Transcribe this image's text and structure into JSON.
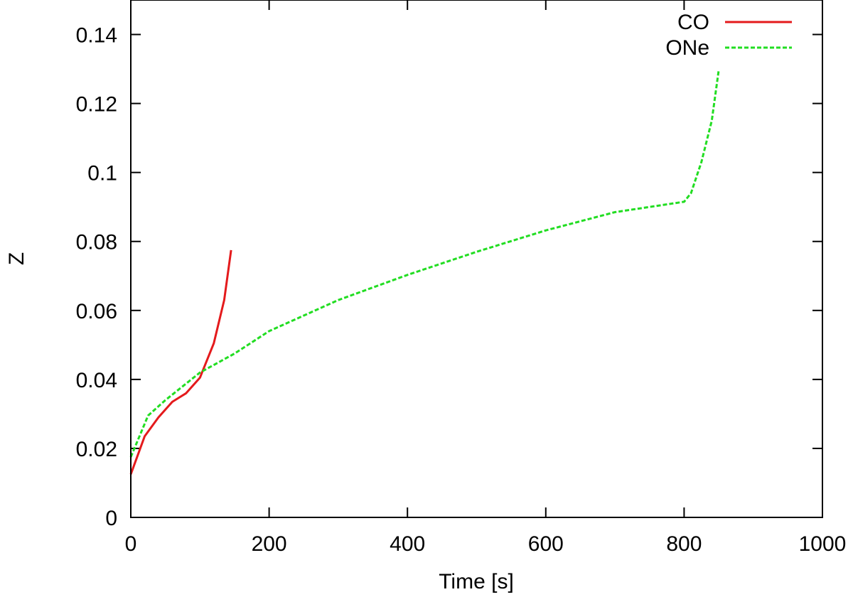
{
  "chart_data": {
    "type": "line",
    "title": "",
    "xlabel": "Time [s]",
    "ylabel": "Z",
    "xlim": [
      0,
      1000
    ],
    "ylim": [
      0,
      0.15
    ],
    "xticks": [
      0,
      200,
      400,
      600,
      800,
      1000
    ],
    "xtick_labels": [
      "0",
      "200",
      "400",
      "600",
      "800",
      "1000"
    ],
    "yticks": [
      0,
      0.02,
      0.04,
      0.06,
      0.08,
      0.1,
      0.12,
      0.14
    ],
    "ytick_labels": [
      "0",
      "0.02",
      "0.04",
      "0.06",
      "0.08",
      "0.1",
      "0.12",
      "0.14"
    ],
    "grid": false,
    "legend_position": "top-right",
    "series": [
      {
        "name": "CO",
        "color": "#e41a1c",
        "dash": "solid",
        "x": [
          0,
          20,
          40,
          60,
          80,
          100,
          120,
          135,
          145
        ],
        "y": [
          0.0125,
          0.0235,
          0.029,
          0.0335,
          0.036,
          0.0405,
          0.0505,
          0.063,
          0.0775
        ]
      },
      {
        "name": "ONe",
        "color": "#22dd22",
        "dash": "dashed",
        "x": [
          0,
          25,
          50,
          100,
          150,
          200,
          300,
          400,
          500,
          600,
          700,
          800,
          810,
          825,
          840,
          850
        ],
        "y": [
          0.0175,
          0.0295,
          0.034,
          0.042,
          0.0475,
          0.054,
          0.063,
          0.0703,
          0.077,
          0.0832,
          0.0885,
          0.0915,
          0.094,
          0.103,
          0.115,
          0.1295
        ]
      }
    ]
  }
}
